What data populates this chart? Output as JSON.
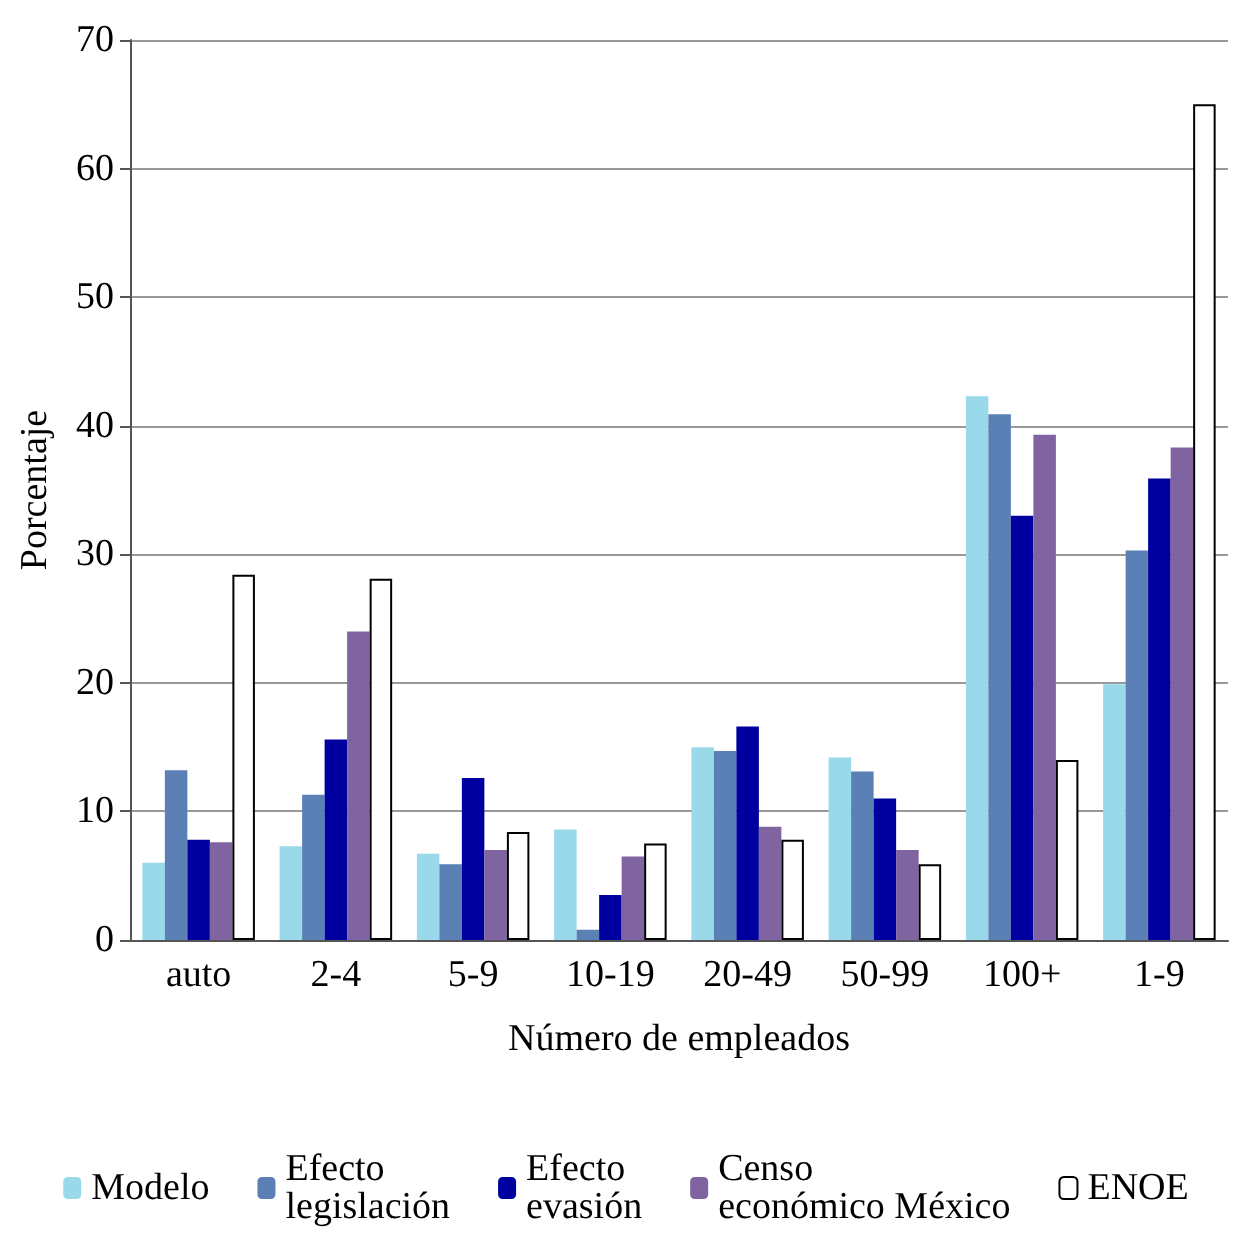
{
  "chart_data": {
    "type": "bar",
    "xlabel": "Número de empleados",
    "ylabel": "Porcentaje",
    "categories": [
      "auto",
      "2-4",
      "5-9",
      "10-19",
      "20-49",
      "50-99",
      "100+",
      "1-9"
    ],
    "series": [
      {
        "name": "Modelo",
        "color": "#99d9ea",
        "values": [
          6,
          7.3,
          6.7,
          8.6,
          15,
          14.2,
          42.3,
          19.9
        ]
      },
      {
        "name": "Efecto legislación",
        "color": "#5b80b5",
        "values": [
          13.2,
          11.3,
          5.9,
          0.8,
          14.7,
          13.1,
          40.9,
          30.3
        ]
      },
      {
        "name": "Efecto evasión",
        "color": "#0000a0",
        "values": [
          7.8,
          15.6,
          12.6,
          3.5,
          16.6,
          11,
          33,
          35.9
        ]
      },
      {
        "name": "Censo económico México",
        "color": "#8064a2",
        "values": [
          7.6,
          24,
          7,
          6.5,
          8.8,
          7,
          39.3,
          38.3
        ]
      },
      {
        "name": "ENOE",
        "color": "#ffffff",
        "values": [
          28.4,
          28.1,
          8.4,
          7.5,
          7.8,
          5.9,
          14,
          65
        ]
      }
    ],
    "ylim": [
      0,
      70
    ],
    "yticks": [
      0,
      10,
      20,
      30,
      40,
      50,
      60,
      70
    ],
    "grid": "y",
    "legend": "bottom"
  }
}
